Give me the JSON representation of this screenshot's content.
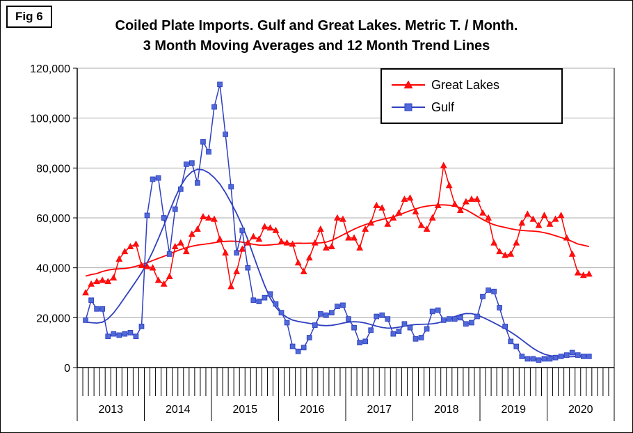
{
  "figure_label": "Fig 6",
  "title": {
    "line1": "Coiled Plate Imports. Gulf and Great Lakes. Metric T. / Month.",
    "line2": "3 Month Moving Averages and 12 Month Trend Lines"
  },
  "legend": {
    "items": [
      {
        "label": "Great Lakes"
      },
      {
        "label": "Gulf"
      }
    ]
  },
  "chart_data": {
    "type": "line",
    "title": "Coiled Plate Imports. Gulf and Great Lakes. Metric T. / Month. 3 Month Moving Averages and 12 Month Trend Lines",
    "ylim": [
      0,
      120000
    ],
    "y_ticks": [
      0,
      20000,
      40000,
      60000,
      80000,
      100000,
      120000
    ],
    "y_tick_labels": [
      "0",
      "20,000",
      "40,000",
      "60,000",
      "80,000",
      "100,000",
      "120,000"
    ],
    "x_year_labels": [
      "2013",
      "2014",
      "2015",
      "2016",
      "2017",
      "2018",
      "2019",
      "2020"
    ],
    "months_per_year": 12,
    "axis_months": 96,
    "series_start_month_index": 1,
    "grid": "horizontal",
    "legend_position": "upper-right",
    "trend_note": "12 month trend lines, smoothed moving averages of the plotted series, same colors, no markers",
    "series": [
      {
        "name": "Great Lakes",
        "kind": "3 month moving average",
        "marker": "triangle",
        "color": "#FF0000",
        "marker_fill": "#FF1010",
        "values": [
          30000,
          33500,
          34500,
          35000,
          34500,
          36000,
          43500,
          46500,
          48500,
          49500,
          41000,
          40500,
          40000,
          35000,
          33500,
          36500,
          48500,
          50000,
          46500,
          53500,
          55500,
          60500,
          60000,
          59500,
          51500,
          46000,
          32500,
          38500,
          47500,
          50000,
          52500,
          51500,
          56500,
          56000,
          55000,
          50500,
          50000,
          49500,
          42000,
          38500,
          44000,
          50000,
          55500,
          48000,
          48500,
          60000,
          59500,
          52000,
          52000,
          48000,
          55500,
          58000,
          65000,
          64000,
          57500,
          60000,
          62000,
          67500,
          68000,
          62500,
          57000,
          55500,
          60000,
          65000,
          81000,
          73000,
          65500,
          63000,
          66500,
          67500,
          67500,
          62000,
          60000,
          50000,
          46500,
          45000,
          45500,
          50000,
          58000,
          61500,
          59500,
          57000,
          61000,
          57500,
          59500,
          61000,
          52000,
          45500,
          38000,
          37000,
          37500
        ]
      },
      {
        "name": "Gulf",
        "kind": "3 month moving average",
        "marker": "square",
        "color": "#2E3FC0",
        "marker_fill": "#5069D8",
        "values": [
          19000,
          27000,
          23500,
          23500,
          12500,
          13500,
          13000,
          13500,
          14000,
          12500,
          16500,
          61000,
          75500,
          76000,
          60000,
          45500,
          63500,
          71500,
          81500,
          82000,
          74000,
          90500,
          86500,
          104500,
          113500,
          93500,
          72500,
          46000,
          55000,
          40000,
          27000,
          26500,
          28000,
          29500,
          25500,
          22000,
          18000,
          8500,
          6500,
          8000,
          12000,
          17000,
          21500,
          21000,
          22000,
          24500,
          25000,
          19500,
          16000,
          10000,
          10500,
          15000,
          20500,
          21000,
          19500,
          13500,
          14500,
          17500,
          16000,
          11500,
          12000,
          15500,
          22500,
          23000,
          19000,
          19500,
          19500,
          20000,
          17500,
          18000,
          20500,
          28500,
          31000,
          30500,
          24000,
          16500,
          10500,
          8500,
          4500,
          3500,
          3500,
          3000,
          3500,
          3500,
          4000,
          4500,
          5000,
          6000,
          5000,
          4500,
          4500
        ]
      }
    ]
  }
}
